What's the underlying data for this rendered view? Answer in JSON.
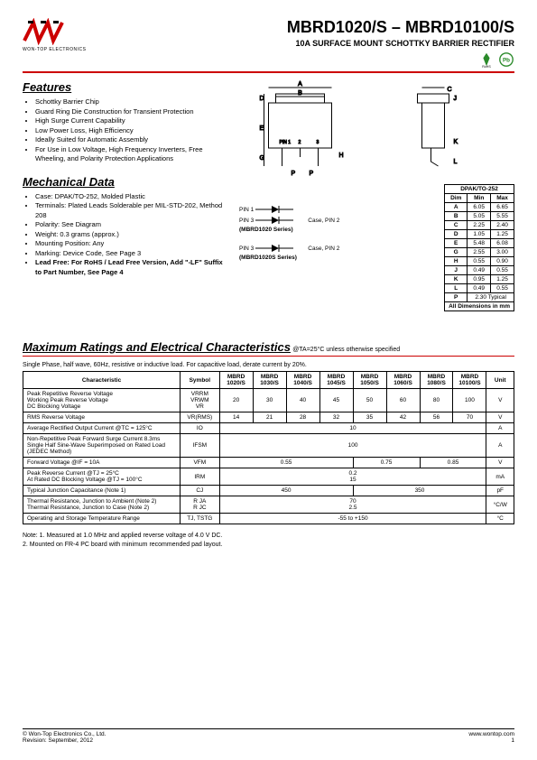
{
  "header": {
    "logo_label": "WON-TOP ELECTRONICS",
    "title": "MBRD1020/S – MBRD10100/S",
    "subtitle": "10A SURFACE MOUNT SCHOTTKY BARRIER RECTIFIER"
  },
  "features": {
    "title": "Features",
    "items": [
      "Schottky Barrier Chip",
      "Guard Ring Die Construction for Transient Protection",
      "High Surge Current Capability",
      "Low Power Loss, High Efficiency",
      "Ideally Suited for Automatic Assembly",
      "For Use in Low Voltage, High Frequency Inverters, Free Wheeling, and Polarity Protection Applications"
    ]
  },
  "mechanical": {
    "title": "Mechanical Data",
    "items": [
      "Case: DPAK/TO-252, Molded Plastic",
      "Terminals: Plated Leads Solderable per MIL-STD-202, Method 208",
      "Polarity: See Diagram",
      "Weight: 0.3 grams (approx.)",
      "Mounting Position: Any",
      "Marking: Device Code, See Page 3"
    ],
    "lead_free": "Lead Free: For RoHS / Lead Free Version, Add \"-LF\" Suffix to Part Number, See Page 4"
  },
  "pin_config": {
    "series1_pin1": "PIN 1",
    "series1_pin3": "PIN 3",
    "series1_case": "Case, PIN 2",
    "series1_name": "(MBRD1020 Series)",
    "series2_pin3": "PIN 3",
    "series2_case": "Case, PIN 2",
    "series2_name": "(MBRD1020S Series)"
  },
  "dim_table": {
    "header": "DPAK/TO-252",
    "cols": [
      "Dim",
      "Min",
      "Max"
    ],
    "rows": [
      [
        "A",
        "6.05",
        "6.65"
      ],
      [
        "B",
        "5.05",
        "5.55"
      ],
      [
        "C",
        "2.25",
        "2.40"
      ],
      [
        "D",
        "1.05",
        "1.25"
      ],
      [
        "E",
        "5.48",
        "6.08"
      ],
      [
        "G",
        "2.55",
        "3.00"
      ],
      [
        "H",
        "0.55",
        "0.90"
      ],
      [
        "J",
        "0.49",
        "0.55"
      ],
      [
        "K",
        "0.95",
        "1.25"
      ],
      [
        "L",
        "0.49",
        "0.55"
      ]
    ],
    "p_row": [
      "P",
      "2.30 Typical"
    ],
    "footer": "All Dimensions in mm"
  },
  "ratings": {
    "title": "Maximum Ratings and Electrical Characteristics",
    "conditions": "@TA=25°C unless otherwise specified",
    "note_line": "Single Phase, half wave, 60Hz, resistive or inductive load. For capacitive load, derate current by 20%.",
    "headers": [
      "Characteristic",
      "Symbol",
      "MBRD 1020/S",
      "MBRD 1030/S",
      "MBRD 1040/S",
      "MBRD 1045/S",
      "MBRD 1050/S",
      "MBRD 1060/S",
      "MBRD 1080/S",
      "MBRD 10100/S",
      "Unit"
    ],
    "rows": [
      {
        "char": "Peak Repetitive Reverse Voltage\nWorking Peak Reverse Voltage\nDC Blocking Voltage",
        "symbol": "VRRM\nVRWM\nVR",
        "vals": [
          "20",
          "30",
          "40",
          "45",
          "50",
          "60",
          "80",
          "100"
        ],
        "unit": "V"
      },
      {
        "char": "RMS Reverse Voltage",
        "symbol": "VR(RMS)",
        "vals": [
          "14",
          "21",
          "28",
          "32",
          "35",
          "42",
          "56",
          "70"
        ],
        "unit": "V"
      },
      {
        "char": "Average Rectified Output Current   @TC = 125°C",
        "symbol": "IO",
        "span": "10",
        "unit": "A"
      },
      {
        "char": "Non-Repetitive Peak Forward Surge Current 8.3ms Single Half Sine-Wave Superimposed on Rated Load (JEDEC Method)",
        "symbol": "IFSM",
        "span": "100",
        "unit": "A"
      },
      {
        "char": "Forward Voltage                        @IF = 10A",
        "symbol": "VFM",
        "groups": [
          {
            "span": 4,
            "val": "0.55"
          },
          {
            "span": 2,
            "val": "0.75"
          },
          {
            "span": 2,
            "val": "0.85"
          }
        ],
        "unit": "V"
      },
      {
        "char": "Peak Reverse Current           @TJ = 25°C\nAt Rated DC Blocking Voltage  @TJ = 100°C",
        "symbol": "IRM",
        "span": "0.2\n15",
        "unit": "mA"
      },
      {
        "char": "Typical Junction Capacitance (Note 1)",
        "symbol": "CJ",
        "groups": [
          {
            "span": 4,
            "val": "450"
          },
          {
            "span": 4,
            "val": "350"
          }
        ],
        "unit": "pF"
      },
      {
        "char": "Thermal Resistance, Junction to Ambient (Note 2)\nThermal Resistance, Junction to Case (Note 2)",
        "symbol": "R JA\nR JC",
        "span": "70\n2.5",
        "unit": "°C/W"
      },
      {
        "char": "Operating and Storage Temperature Range",
        "symbol": "TJ, TSTG",
        "span": "-55 to +150",
        "unit": "°C"
      }
    ]
  },
  "notes": {
    "line1": "Note:  1. Measured at 1.0 MHz and applied reverse voltage of 4.0 V DC.",
    "line2": "          2. Mounted on FR-4 PC board with minimum recommended pad layout."
  },
  "footer": {
    "copyright": "© Won-Top Electronics Co., Ltd.",
    "revision": "Revision: September, 2012",
    "url": "www.wontop.com",
    "page": "1"
  }
}
